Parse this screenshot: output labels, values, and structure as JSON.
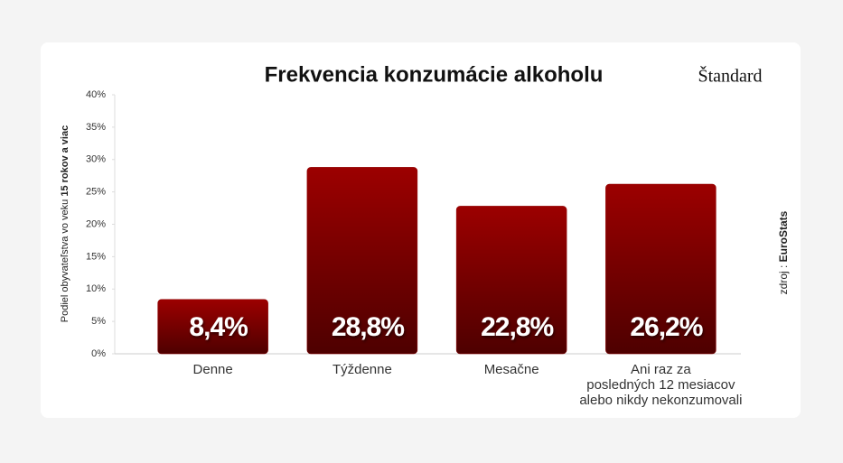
{
  "chart_data": {
    "type": "bar",
    "title": "Frekvencia konzumácie alkoholu",
    "logo": "Štandard",
    "y_label": [
      "Podiel obyvateľstva vo veku ",
      "15 rokov a viac"
    ],
    "source": [
      "zdroj : ",
      "EuroStats"
    ],
    "categories": [
      "Denne",
      "Týždenne",
      "Mesačne",
      "Ani raz za\nposledných 12 mesiacov\nalebo nikdy nekonzumovali"
    ],
    "values": [
      8.4,
      28.8,
      22.8,
      26.2
    ],
    "value_labels": [
      "8,4%",
      "28,8%",
      "22,8%",
      "26,2%"
    ],
    "color": "#8e0000",
    "ylim": [
      0,
      40
    ],
    "yticks": [
      {
        "value": 0,
        "label": "0%"
      },
      {
        "value": 5,
        "label": "5%"
      },
      {
        "value": 10,
        "label": "10%"
      },
      {
        "value": 15,
        "label": "15%"
      },
      {
        "value": 20,
        "label": "20%"
      },
      {
        "value": 25,
        "label": "25%"
      },
      {
        "value": 30,
        "label": "30%"
      },
      {
        "value": 35,
        "label": "35%"
      },
      {
        "value": 40,
        "label": "40%"
      }
    ],
    "grid": false
  }
}
